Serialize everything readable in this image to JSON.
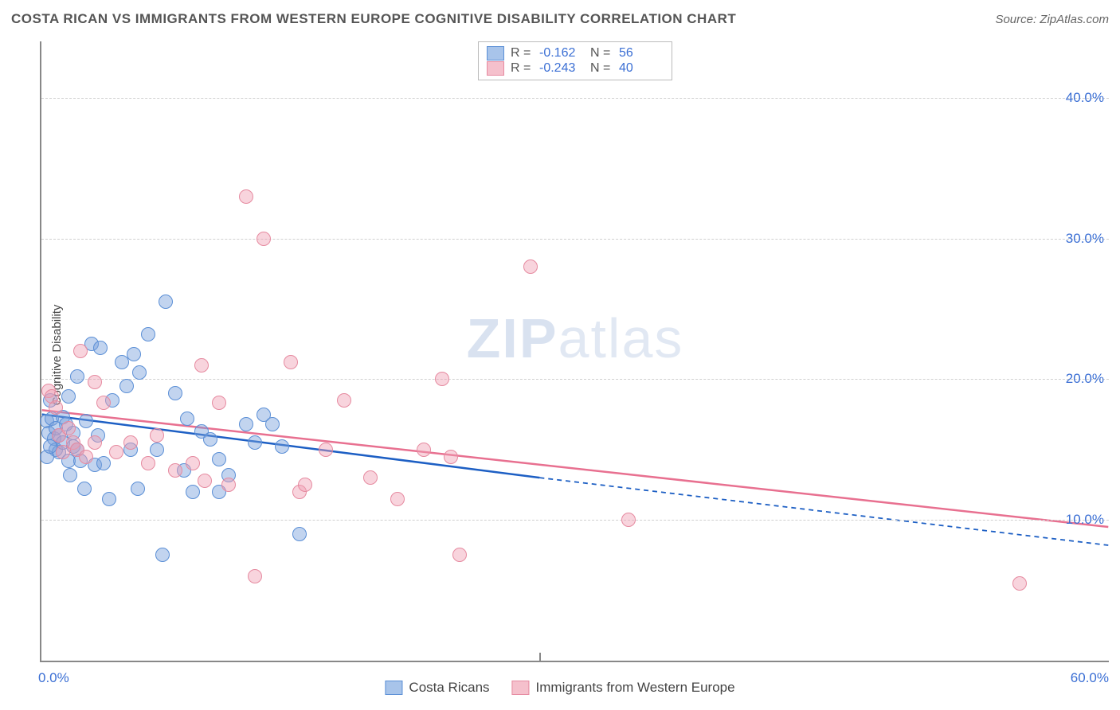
{
  "title": "COSTA RICAN VS IMMIGRANTS FROM WESTERN EUROPE COGNITIVE DISABILITY CORRELATION CHART",
  "source": "Source: ZipAtlas.com",
  "ylabel": "Cognitive Disability",
  "watermark_bold": "ZIP",
  "watermark_rest": "atlas",
  "chart": {
    "type": "scatter",
    "xlim": [
      0,
      60
    ],
    "ylim": [
      0,
      44
    ],
    "x_ticks": [
      0,
      60
    ],
    "x_tick_labels": [
      "0.0%",
      "60.0%"
    ],
    "y_ticks": [
      10,
      20,
      30,
      40
    ],
    "y_tick_labels": [
      "10.0%",
      "20.0%",
      "30.0%",
      "40.0%"
    ],
    "x_tick_inner_at": 28,
    "grid_color": "#d0d0d0",
    "axis_color": "#888888",
    "background_color": "#ffffff",
    "point_radius": 9,
    "point_border_width": 1.5,
    "series": [
      {
        "name": "Costa Ricans",
        "fill": "rgba(120,160,220,0.45)",
        "stroke": "#5b8fd6",
        "swatch_fill": "#a8c4ea",
        "swatch_border": "#5b8fd6",
        "R": "-0.162",
        "N": "56",
        "trend": {
          "x1": 0,
          "y1": 17.5,
          "x2": 28,
          "y2": 13.0,
          "solid_color": "#1d5fc4",
          "dash_x2": 60,
          "dash_y2": 8.2,
          "width": 2.5
        },
        "points": [
          [
            0.3,
            17.0
          ],
          [
            0.4,
            16.2
          ],
          [
            0.5,
            18.5
          ],
          [
            0.6,
            17.2
          ],
          [
            0.7,
            15.8
          ],
          [
            0.8,
            15.0
          ],
          [
            1.0,
            16.0
          ],
          [
            1.0,
            14.8
          ],
          [
            1.2,
            17.3
          ],
          [
            1.2,
            15.5
          ],
          [
            1.4,
            16.8
          ],
          [
            1.5,
            18.8
          ],
          [
            1.5,
            14.2
          ],
          [
            1.6,
            13.2
          ],
          [
            1.8,
            16.2
          ],
          [
            1.8,
            15.2
          ],
          [
            2.0,
            20.2
          ],
          [
            2.0,
            15.0
          ],
          [
            2.2,
            14.2
          ],
          [
            2.4,
            12.2
          ],
          [
            2.5,
            17.0
          ],
          [
            2.8,
            22.5
          ],
          [
            3.0,
            13.9
          ],
          [
            3.2,
            16.0
          ],
          [
            3.3,
            22.2
          ],
          [
            3.5,
            14.0
          ],
          [
            3.8,
            11.5
          ],
          [
            4.0,
            18.5
          ],
          [
            4.5,
            21.2
          ],
          [
            4.8,
            19.5
          ],
          [
            5.0,
            15.0
          ],
          [
            5.2,
            21.8
          ],
          [
            5.4,
            12.2
          ],
          [
            5.5,
            20.5
          ],
          [
            6.0,
            23.2
          ],
          [
            6.5,
            15.0
          ],
          [
            6.8,
            7.5
          ],
          [
            7.0,
            25.5
          ],
          [
            7.5,
            19.0
          ],
          [
            8.0,
            13.5
          ],
          [
            8.2,
            17.2
          ],
          [
            8.5,
            12.0
          ],
          [
            9.0,
            16.3
          ],
          [
            9.5,
            15.7
          ],
          [
            10.0,
            14.3
          ],
          [
            10.0,
            12.0
          ],
          [
            10.5,
            13.2
          ],
          [
            11.5,
            16.8
          ],
          [
            12.0,
            15.5
          ],
          [
            12.5,
            17.5
          ],
          [
            13.0,
            16.8
          ],
          [
            13.5,
            15.2
          ],
          [
            14.5,
            9.0
          ],
          [
            0.3,
            14.5
          ],
          [
            0.5,
            15.2
          ],
          [
            0.8,
            16.5
          ]
        ]
      },
      {
        "name": "Immigrants from Western Europe",
        "fill": "rgba(240,160,180,0.45)",
        "stroke": "#e68aa0",
        "swatch_fill": "#f5c0cc",
        "swatch_border": "#e68aa0",
        "R": "-0.243",
        "N": "40",
        "trend": {
          "x1": 0,
          "y1": 17.8,
          "x2": 60,
          "y2": 9.5,
          "solid_color": "#e87090",
          "width": 2.5
        },
        "points": [
          [
            0.4,
            19.2
          ],
          [
            0.6,
            18.8
          ],
          [
            0.8,
            18.0
          ],
          [
            1.0,
            16.0
          ],
          [
            1.2,
            14.8
          ],
          [
            1.5,
            16.5
          ],
          [
            1.8,
            15.5
          ],
          [
            2.0,
            15.0
          ],
          [
            2.2,
            22.0
          ],
          [
            2.5,
            14.5
          ],
          [
            3.0,
            15.5
          ],
          [
            3.0,
            19.8
          ],
          [
            3.5,
            18.3
          ],
          [
            4.2,
            14.8
          ],
          [
            5.0,
            15.5
          ],
          [
            6.0,
            14.0
          ],
          [
            6.5,
            16.0
          ],
          [
            7.5,
            13.5
          ],
          [
            8.5,
            14.0
          ],
          [
            9.0,
            21.0
          ],
          [
            9.2,
            12.8
          ],
          [
            10.0,
            18.3
          ],
          [
            10.5,
            12.5
          ],
          [
            11.5,
            33.0
          ],
          [
            12.0,
            6.0
          ],
          [
            12.5,
            30.0
          ],
          [
            14.0,
            21.2
          ],
          [
            14.5,
            12.0
          ],
          [
            14.8,
            12.5
          ],
          [
            16.0,
            15.0
          ],
          [
            17.0,
            18.5
          ],
          [
            18.5,
            13.0
          ],
          [
            20.0,
            11.5
          ],
          [
            21.5,
            15.0
          ],
          [
            22.5,
            20.0
          ],
          [
            23.0,
            14.5
          ],
          [
            23.5,
            7.5
          ],
          [
            27.5,
            28.0
          ],
          [
            33.0,
            10.0
          ],
          [
            55.0,
            5.5
          ]
        ]
      }
    ]
  },
  "legend_bottom": [
    {
      "label": "Costa Ricans",
      "fill": "#a8c4ea",
      "border": "#5b8fd6"
    },
    {
      "label": "Immigrants from Western Europe",
      "fill": "#f5c0cc",
      "border": "#e68aa0"
    }
  ]
}
